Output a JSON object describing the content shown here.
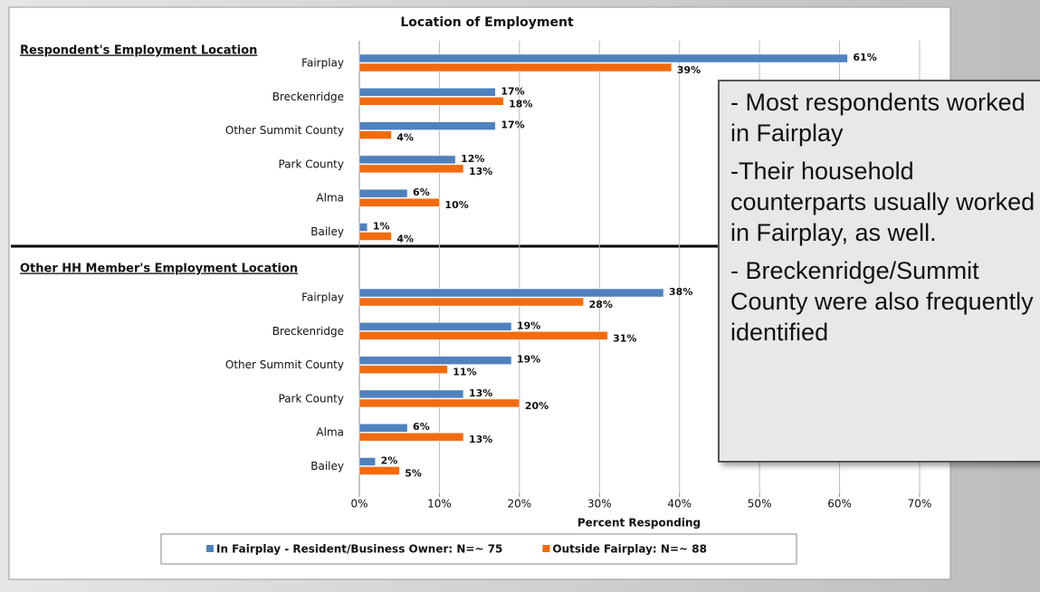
{
  "chart_data": {
    "type": "barh",
    "title": "Location of Employment",
    "xlabel": "Percent Responding",
    "xlim": [
      0,
      70
    ],
    "xticks": [
      {
        "value": 0,
        "label": "0%"
      },
      {
        "value": 10,
        "label": "10%"
      },
      {
        "value": 20,
        "label": "20%"
      },
      {
        "value": 30,
        "label": "30%"
      },
      {
        "value": 40,
        "label": "40%"
      },
      {
        "value": 50,
        "label": "50%"
      },
      {
        "value": 60,
        "label": "60%"
      },
      {
        "value": 70,
        "label": "70%"
      }
    ],
    "grid": true,
    "legend": [
      {
        "name": "In Fairplay - Resident/Business Owner: N=~ 75",
        "color": "#4f81bd"
      },
      {
        "name": "Outside Fairplay: N=~ 88",
        "color": "#f26b0f"
      }
    ],
    "panels": [
      {
        "title": "Respondent's Employment Location",
        "categories": [
          "Fairplay",
          "Breckenridge",
          "Other Summit County",
          "Park County",
          "Alma",
          "Bailey"
        ],
        "series": [
          {
            "values": [
              61,
              17,
              17,
              12,
              6,
              1
            ],
            "value_labels": [
              "61%",
              "17%",
              "17%",
              "12%",
              "6%",
              "1%"
            ]
          },
          {
            "values": [
              39,
              18,
              4,
              13,
              10,
              4
            ],
            "value_labels": [
              "39%",
              "18%",
              "4%",
              "13%",
              "10%",
              "4%"
            ]
          }
        ]
      },
      {
        "title": "Other HH Member's Employment Location",
        "categories": [
          "Fairplay",
          "Breckenridge",
          "Other Summit County",
          "Park County",
          "Alma",
          "Bailey"
        ],
        "series": [
          {
            "values": [
              38,
              19,
              19,
              13,
              6,
              2
            ],
            "value_labels": [
              "38%",
              "19%",
              "19%",
              "13%",
              "6%",
              "2%"
            ]
          },
          {
            "values": [
              28,
              31,
              11,
              20,
              13,
              5
            ],
            "value_labels": [
              "28%",
              "31%",
              "11%",
              "20%",
              "13%",
              "5%"
            ]
          }
        ]
      }
    ]
  },
  "callout": [
    "- Most respondents worked in Fairplay",
    "-Their household counterparts usually worked in Fairplay, as well.",
    "- Breckenridge/Summit County were also frequently identified"
  ]
}
